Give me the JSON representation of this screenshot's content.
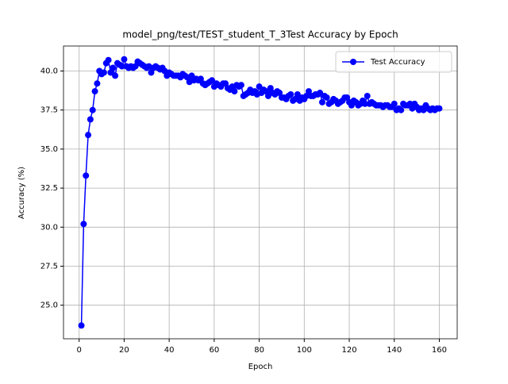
{
  "chart_data": {
    "type": "line",
    "title": "model_png/test/TEST_student_T_3Test Accuracy by Epoch",
    "x_label": "Epoch",
    "y_label": "Accuracy (%)",
    "x": [
      1,
      2,
      3,
      4,
      5,
      6,
      7,
      8,
      9,
      10,
      11,
      12,
      13,
      14,
      15,
      16,
      17,
      18,
      19,
      20,
      21,
      22,
      23,
      24,
      25,
      26,
      27,
      28,
      29,
      30,
      31,
      32,
      33,
      34,
      35,
      36,
      37,
      38,
      39,
      40,
      41,
      42,
      43,
      44,
      45,
      46,
      47,
      48,
      49,
      50,
      51,
      52,
      53,
      54,
      55,
      56,
      57,
      58,
      59,
      60,
      61,
      62,
      63,
      64,
      65,
      66,
      67,
      68,
      69,
      70,
      71,
      72,
      73,
      74,
      75,
      76,
      77,
      78,
      79,
      80,
      81,
      82,
      83,
      84,
      85,
      86,
      87,
      88,
      89,
      90,
      91,
      92,
      93,
      94,
      95,
      96,
      97,
      98,
      99,
      100,
      101,
      102,
      103,
      104,
      105,
      106,
      107,
      108,
      109,
      110,
      111,
      112,
      113,
      114,
      115,
      116,
      117,
      118,
      119,
      120,
      121,
      122,
      123,
      124,
      125,
      126,
      127,
      128,
      129,
      130,
      131,
      132,
      133,
      134,
      135,
      136,
      137,
      138,
      139,
      140,
      141,
      142,
      143,
      144,
      145,
      146,
      147,
      148,
      149,
      150,
      151,
      152,
      153,
      154,
      155,
      156,
      157,
      158,
      159,
      160
    ],
    "series": [
      {
        "name": "Test Accuracy",
        "color": "#0000ff",
        "values": [
          23.7,
          30.2,
          33.3,
          35.9,
          36.9,
          37.5,
          38.7,
          39.2,
          40.0,
          39.8,
          39.9,
          40.5,
          40.7,
          39.9,
          40.2,
          39.7,
          40.5,
          40.4,
          40.3,
          40.75,
          40.3,
          40.2,
          40.3,
          40.2,
          40.3,
          40.6,
          40.5,
          40.4,
          40.3,
          40.2,
          40.3,
          39.9,
          40.2,
          40.3,
          40.2,
          40.1,
          40.2,
          40.0,
          39.7,
          39.9,
          39.8,
          39.7,
          39.7,
          39.7,
          39.6,
          39.8,
          39.7,
          39.6,
          39.3,
          39.7,
          39.4,
          39.5,
          39.4,
          39.5,
          39.2,
          39.1,
          39.2,
          39.3,
          39.4,
          39.0,
          39.2,
          39.1,
          39.0,
          39.2,
          39.2,
          38.9,
          38.8,
          39.0,
          38.7,
          39.1,
          39.0,
          39.1,
          38.4,
          38.5,
          38.6,
          38.8,
          38.6,
          38.7,
          38.5,
          39.0,
          38.6,
          38.8,
          38.7,
          38.4,
          38.9,
          38.6,
          38.5,
          38.7,
          38.6,
          38.3,
          38.3,
          38.2,
          38.4,
          38.5,
          38.1,
          38.2,
          38.5,
          38.1,
          38.3,
          38.2,
          38.4,
          38.7,
          38.4,
          38.4,
          38.5,
          38.5,
          38.6,
          38.0,
          38.4,
          38.3,
          37.9,
          38.0,
          38.2,
          38.1,
          37.9,
          38.0,
          38.1,
          38.3,
          38.3,
          38.0,
          37.8,
          38.1,
          38.0,
          37.8,
          37.9,
          38.1,
          37.9,
          38.4,
          37.9,
          38.0,
          37.9,
          37.8,
          37.8,
          37.8,
          37.7,
          37.8,
          37.8,
          37.7,
          37.7,
          37.9,
          37.5,
          37.6,
          37.5,
          37.9,
          37.8,
          37.8,
          37.9,
          37.6,
          37.9,
          37.7,
          37.5,
          37.6,
          37.5,
          37.8,
          37.6,
          37.5,
          37.6,
          37.5,
          37.6,
          37.6
        ]
      }
    ],
    "xlim": [
      -6.95,
      167.95
    ],
    "ylim": [
      22.85,
      41.6
    ],
    "xticks": [
      0,
      20,
      40,
      60,
      80,
      100,
      120,
      140,
      160
    ],
    "yticks": [
      {
        "value": 25.0,
        "label": "25.0"
      },
      27.5,
      {
        "value": 30.0,
        "label": "30.0"
      },
      32.5,
      {
        "value": 35.0,
        "label": "35.0"
      },
      37.5,
      {
        "value": 40.0,
        "label": "40.0"
      }
    ],
    "grid": true,
    "legend": "upper right"
  }
}
